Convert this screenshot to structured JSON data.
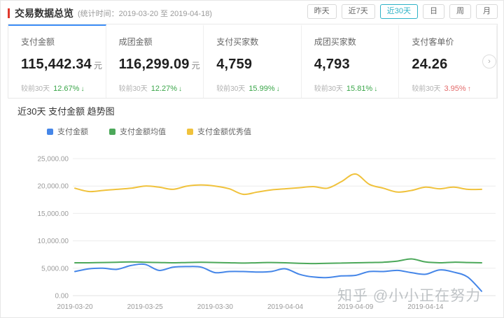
{
  "header": {
    "title": "交易数据总览",
    "subtitle": "(统计时间：2019-03-20 至 2019-04-18)",
    "range_buttons": [
      {
        "label": "昨天",
        "active": false
      },
      {
        "label": "近7天",
        "active": false
      },
      {
        "label": "近30天",
        "active": true
      },
      {
        "label": "日",
        "active": false
      },
      {
        "label": "周",
        "active": false
      },
      {
        "label": "月",
        "active": false
      }
    ]
  },
  "stat_cards": [
    {
      "title": "支付金额",
      "value": "115,442.34",
      "unit": "元",
      "compare_label": "较前30天",
      "change": "12.67%",
      "direction": "down",
      "arrow": "↓",
      "active": true
    },
    {
      "title": "成团金额",
      "value": "116,299.09",
      "unit": "元",
      "compare_label": "较前30天",
      "change": "12.27%",
      "direction": "down",
      "arrow": "↓",
      "active": false
    },
    {
      "title": "支付买家数",
      "value": "4,759",
      "unit": "",
      "compare_label": "较前30天",
      "change": "15.99%",
      "direction": "down",
      "arrow": "↓",
      "active": false
    },
    {
      "title": "成团买家数",
      "value": "4,793",
      "unit": "",
      "compare_label": "较前30天",
      "change": "15.81%",
      "direction": "down",
      "arrow": "↓",
      "active": false
    },
    {
      "title": "支付客单价",
      "value": "24.26",
      "unit": "",
      "compare_label": "较前30天",
      "change": "3.95%",
      "direction": "up",
      "arrow": "↑",
      "active": false
    }
  ],
  "cards_next_label": "›",
  "chart": {
    "title": "近30天 支付金额 趋势图",
    "watermark": "知乎 @小小正在努力"
  },
  "chart_data": {
    "type": "line",
    "title": "近30天 支付金额 趋势图",
    "x": [
      "2019-03-20",
      "2019-03-21",
      "2019-03-22",
      "2019-03-23",
      "2019-03-24",
      "2019-03-25",
      "2019-03-26",
      "2019-03-27",
      "2019-03-28",
      "2019-03-29",
      "2019-03-30",
      "2019-03-31",
      "2019-04-01",
      "2019-04-02",
      "2019-04-03",
      "2019-04-04",
      "2019-04-05",
      "2019-04-06",
      "2019-04-07",
      "2019-04-08",
      "2019-04-09",
      "2019-04-10",
      "2019-04-11",
      "2019-04-12",
      "2019-04-13",
      "2019-04-14",
      "2019-04-15",
      "2019-04-16",
      "2019-04-17",
      "2019-04-18"
    ],
    "x_tick_every": 5,
    "ylim": [
      0,
      25000
    ],
    "y_tick_step": 5000,
    "y_ticks": [
      "0.00",
      "5,000.00",
      "10,000.00",
      "15,000.00",
      "20,000.00",
      "25,000.00"
    ],
    "grid": "horizontal",
    "legend_position": "top-left",
    "series": [
      {
        "id": "payment-amount",
        "name": "支付金额",
        "color": "#4586e8",
        "values": [
          4400,
          4900,
          5000,
          4800,
          5500,
          5700,
          4600,
          5200,
          5300,
          5200,
          4200,
          4400,
          4400,
          4300,
          4400,
          4900,
          3900,
          3400,
          3300,
          3600,
          3700,
          4400,
          4400,
          4600,
          4200,
          3900,
          4700,
          4300,
          3400,
          800
        ]
      },
      {
        "id": "payment-amount-average",
        "name": "支付金额均值",
        "color": "#4ca85a",
        "values": [
          6000,
          6000,
          6050,
          6100,
          6150,
          6100,
          6050,
          6000,
          6050,
          6100,
          6050,
          6000,
          5950,
          6000,
          6050,
          6000,
          5900,
          5850,
          5900,
          5950,
          6000,
          6050,
          6100,
          6300,
          6700,
          6150,
          6000,
          6100,
          6050,
          6000
        ]
      },
      {
        "id": "payment-amount-excellent",
        "name": "支付金额优秀值",
        "color": "#f0c23c",
        "values": [
          19600,
          19000,
          19200,
          19400,
          19600,
          20000,
          19800,
          19400,
          20000,
          20200,
          20000,
          19500,
          18500,
          18900,
          19300,
          19500,
          19700,
          19900,
          19600,
          20800,
          22200,
          20300,
          19600,
          18900,
          19200,
          19800,
          19500,
          19800,
          19400,
          19400
        ]
      }
    ]
  }
}
